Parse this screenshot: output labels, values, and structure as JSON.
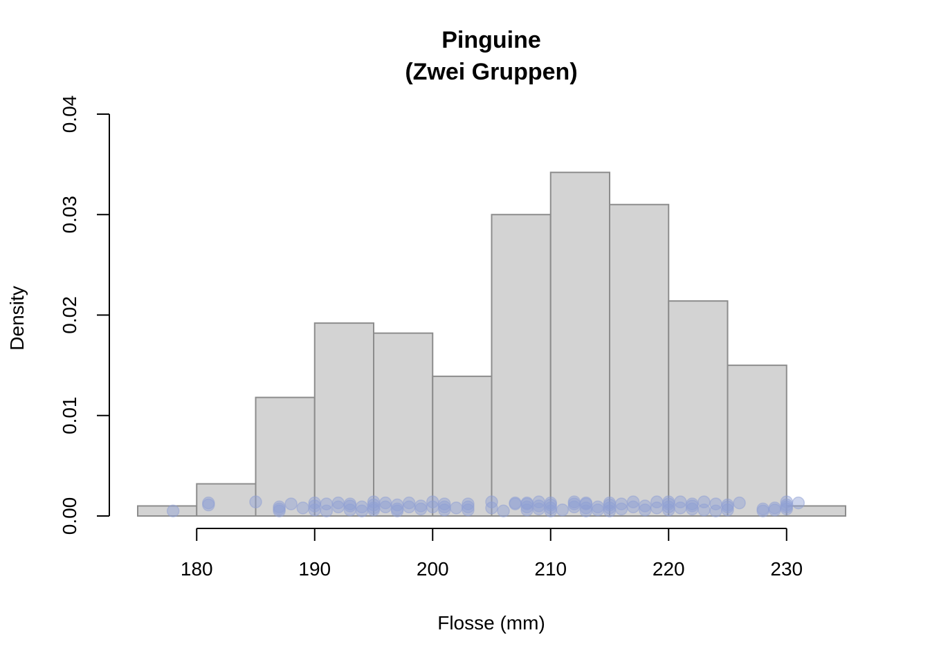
{
  "chart_data": {
    "type": "bar",
    "title": "Pinguine",
    "subtitle": "(Zwei Gruppen)",
    "xlabel": "Flosse (mm)",
    "ylabel": "Density",
    "xlim": [
      175,
      235
    ],
    "ylim": [
      0,
      0.04
    ],
    "x_ticks": [
      180,
      190,
      200,
      210,
      220,
      230
    ],
    "x_tick_labels": [
      "180",
      "190",
      "200",
      "210",
      "220",
      "230"
    ],
    "y_ticks": [
      0,
      0.01,
      0.02,
      0.03,
      0.04
    ],
    "y_tick_labels": [
      "0.00",
      "0.01",
      "0.02",
      "0.03",
      "0.04"
    ],
    "bins": [
      {
        "from": 175,
        "to": 180,
        "density": 0.001
      },
      {
        "from": 180,
        "to": 185,
        "density": 0.0032
      },
      {
        "from": 185,
        "to": 190,
        "density": 0.0118
      },
      {
        "from": 190,
        "to": 195,
        "density": 0.0192
      },
      {
        "from": 195,
        "to": 200,
        "density": 0.0182
      },
      {
        "from": 200,
        "to": 205,
        "density": 0.0139
      },
      {
        "from": 205,
        "to": 210,
        "density": 0.03
      },
      {
        "from": 210,
        "to": 215,
        "density": 0.0342
      },
      {
        "from": 215,
        "to": 220,
        "density": 0.031
      },
      {
        "from": 220,
        "to": 225,
        "density": 0.0214
      },
      {
        "from": 225,
        "to": 230,
        "density": 0.015
      },
      {
        "from": 230,
        "to": 235,
        "density": 0.001
      }
    ],
    "points": [
      {
        "x": 178,
        "y": 0.0005
      },
      {
        "x": 181,
        "y": 0.0011
      },
      {
        "x": 181,
        "y": 0.0013
      },
      {
        "x": 185,
        "y": 0.0014
      },
      {
        "x": 187,
        "y": 0.0005
      },
      {
        "x": 187,
        "y": 0.0007
      },
      {
        "x": 187,
        "y": 0.0009
      },
      {
        "x": 188,
        "y": 0.0012
      },
      {
        "x": 189,
        "y": 0.0008
      },
      {
        "x": 190,
        "y": 0.0006
      },
      {
        "x": 190,
        "y": 0.001
      },
      {
        "x": 190,
        "y": 0.0013
      },
      {
        "x": 191,
        "y": 0.0005
      },
      {
        "x": 191,
        "y": 0.0012
      },
      {
        "x": 192,
        "y": 0.0009
      },
      {
        "x": 192,
        "y": 0.0013
      },
      {
        "x": 193,
        "y": 0.0006
      },
      {
        "x": 193,
        "y": 0.001
      },
      {
        "x": 193,
        "y": 0.0012
      },
      {
        "x": 194,
        "y": 0.0005
      },
      {
        "x": 194,
        "y": 0.0009
      },
      {
        "x": 195,
        "y": 0.0006
      },
      {
        "x": 195,
        "y": 0.0008
      },
      {
        "x": 195,
        "y": 0.0011
      },
      {
        "x": 195,
        "y": 0.0014
      },
      {
        "x": 196,
        "y": 0.0009
      },
      {
        "x": 196,
        "y": 0.0013
      },
      {
        "x": 197,
        "y": 0.0005
      },
      {
        "x": 197,
        "y": 0.0007
      },
      {
        "x": 197,
        "y": 0.0011
      },
      {
        "x": 198,
        "y": 0.0009
      },
      {
        "x": 198,
        "y": 0.0013
      },
      {
        "x": 199,
        "y": 0.0007
      },
      {
        "x": 199,
        "y": 0.001
      },
      {
        "x": 200,
        "y": 0.0009
      },
      {
        "x": 200,
        "y": 0.0014
      },
      {
        "x": 201,
        "y": 0.0006
      },
      {
        "x": 201,
        "y": 0.0009
      },
      {
        "x": 201,
        "y": 0.0012
      },
      {
        "x": 202,
        "y": 0.0008
      },
      {
        "x": 203,
        "y": 0.0006
      },
      {
        "x": 203,
        "y": 0.0009
      },
      {
        "x": 203,
        "y": 0.0012
      },
      {
        "x": 205,
        "y": 0.0008
      },
      {
        "x": 205,
        "y": 0.0014
      },
      {
        "x": 206,
        "y": 0.0005
      },
      {
        "x": 207,
        "y": 0.0012
      },
      {
        "x": 207,
        "y": 0.0013
      },
      {
        "x": 208,
        "y": 0.0006
      },
      {
        "x": 208,
        "y": 0.0009
      },
      {
        "x": 208,
        "y": 0.0012
      },
      {
        "x": 208,
        "y": 0.0013
      },
      {
        "x": 209,
        "y": 0.0007
      },
      {
        "x": 209,
        "y": 0.001
      },
      {
        "x": 209,
        "y": 0.0014
      },
      {
        "x": 210,
        "y": 0.0005
      },
      {
        "x": 210,
        "y": 0.0008
      },
      {
        "x": 210,
        "y": 0.0011
      },
      {
        "x": 210,
        "y": 0.0013
      },
      {
        "x": 211,
        "y": 0.0006
      },
      {
        "x": 212,
        "y": 0.0009
      },
      {
        "x": 212,
        "y": 0.0012
      },
      {
        "x": 212,
        "y": 0.0014
      },
      {
        "x": 213,
        "y": 0.0005
      },
      {
        "x": 213,
        "y": 0.0008
      },
      {
        "x": 213,
        "y": 0.0012
      },
      {
        "x": 213,
        "y": 0.0013
      },
      {
        "x": 214,
        "y": 0.0006
      },
      {
        "x": 214,
        "y": 0.0009
      },
      {
        "x": 215,
        "y": 0.0005
      },
      {
        "x": 215,
        "y": 0.0008
      },
      {
        "x": 215,
        "y": 0.0011
      },
      {
        "x": 215,
        "y": 0.0013
      },
      {
        "x": 216,
        "y": 0.0007
      },
      {
        "x": 216,
        "y": 0.0012
      },
      {
        "x": 217,
        "y": 0.0009
      },
      {
        "x": 217,
        "y": 0.0014
      },
      {
        "x": 218,
        "y": 0.0006
      },
      {
        "x": 218,
        "y": 0.001
      },
      {
        "x": 219,
        "y": 0.0008
      },
      {
        "x": 219,
        "y": 0.0014
      },
      {
        "x": 220,
        "y": 0.0006
      },
      {
        "x": 220,
        "y": 0.0009
      },
      {
        "x": 220,
        "y": 0.0012
      },
      {
        "x": 220,
        "y": 0.0014
      },
      {
        "x": 221,
        "y": 0.0008
      },
      {
        "x": 221,
        "y": 0.0014
      },
      {
        "x": 222,
        "y": 0.0007
      },
      {
        "x": 222,
        "y": 0.001
      },
      {
        "x": 222,
        "y": 0.0012
      },
      {
        "x": 223,
        "y": 0.0006
      },
      {
        "x": 223,
        "y": 0.0014
      },
      {
        "x": 224,
        "y": 0.0005
      },
      {
        "x": 224,
        "y": 0.0012
      },
      {
        "x": 225,
        "y": 0.0006
      },
      {
        "x": 225,
        "y": 0.0009
      },
      {
        "x": 225,
        "y": 0.0011
      },
      {
        "x": 226,
        "y": 0.0013
      },
      {
        "x": 228,
        "y": 0.0005
      },
      {
        "x": 228,
        "y": 0.0007
      },
      {
        "x": 229,
        "y": 0.0006
      },
      {
        "x": 229,
        "y": 0.0008
      },
      {
        "x": 230,
        "y": 0.0007
      },
      {
        "x": 230,
        "y": 0.0009
      },
      {
        "x": 230,
        "y": 0.0011
      },
      {
        "x": 230,
        "y": 0.0014
      },
      {
        "x": 231,
        "y": 0.0013
      }
    ],
    "bar_color": "#d3d3d3",
    "bar_border_color": "#8c8c8c",
    "point_color": "#8f9fd4",
    "grid": false,
    "legend": "none"
  }
}
